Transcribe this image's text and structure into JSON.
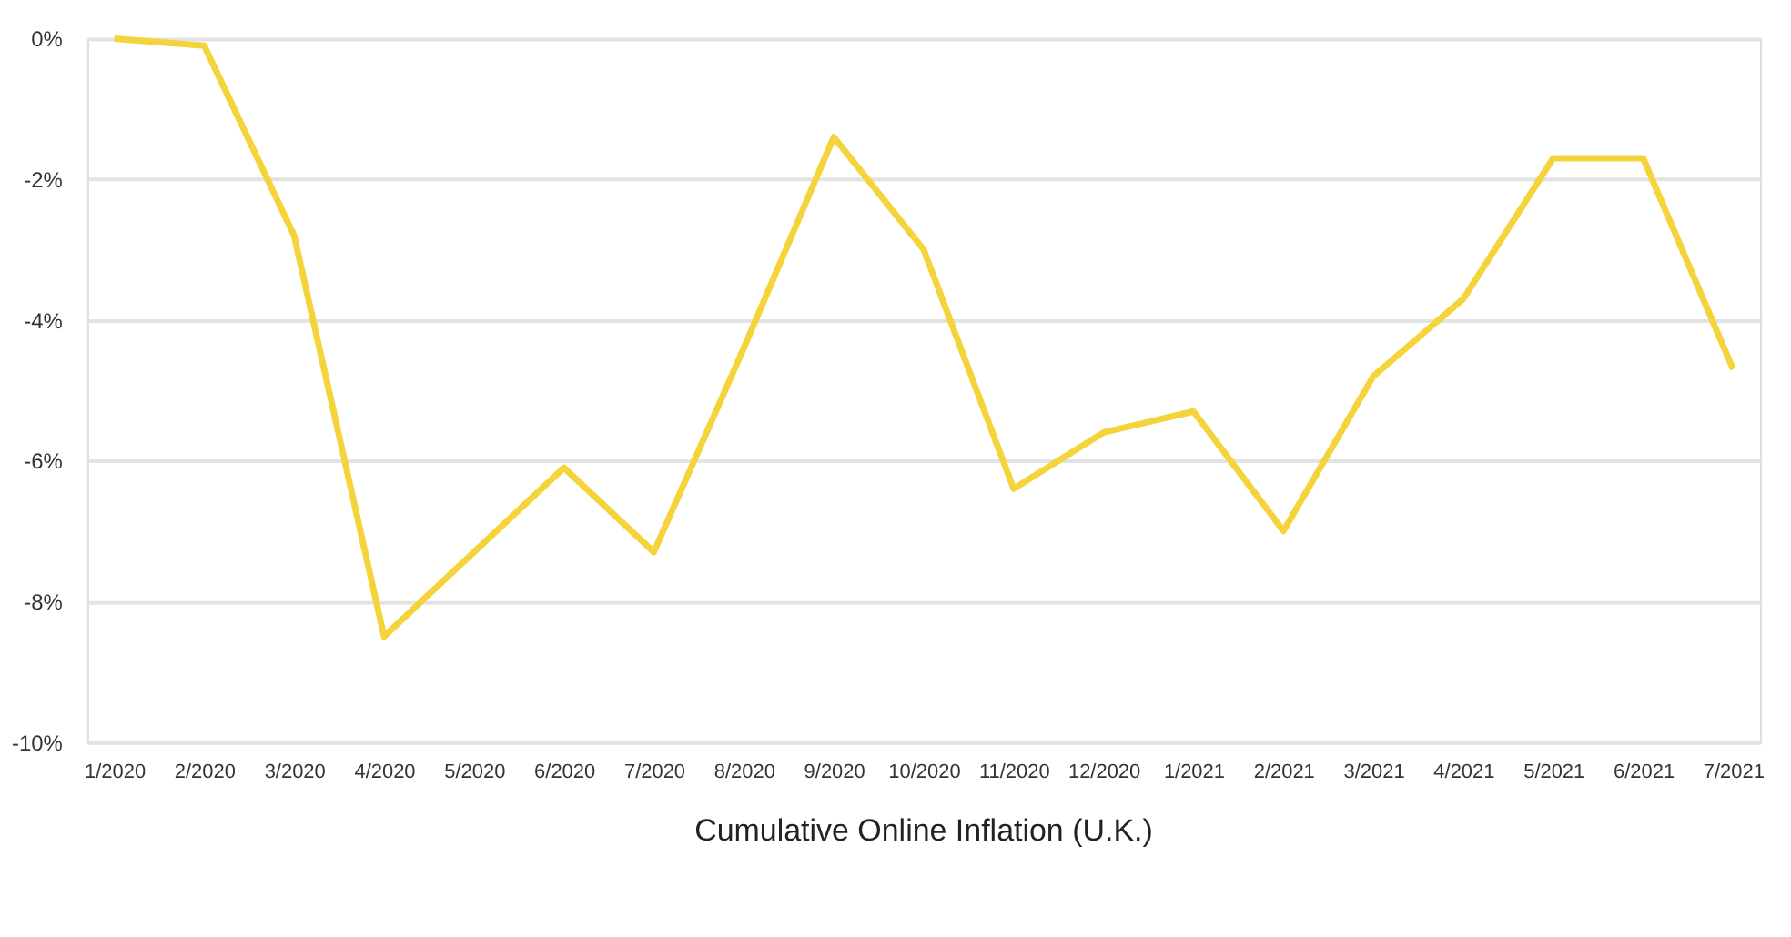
{
  "chart_data": {
    "type": "line",
    "title": "Cumulative Online Inflation (U.K.)",
    "categories": [
      "1/2020",
      "2/2020",
      "3/2020",
      "4/2020",
      "5/2020",
      "6/2020",
      "7/2020",
      "8/2020",
      "9/2020",
      "10/2020",
      "11/2020",
      "12/2020",
      "1/2021",
      "2/2021",
      "3/2021",
      "4/2021",
      "5/2021",
      "6/2021",
      "7/2021"
    ],
    "series": [
      {
        "color": "#f5d33a",
        "values": [
          0,
          -0.1,
          -2.8,
          -8.5,
          -7.3,
          -6.1,
          -7.3,
          -4.4,
          -1.4,
          -3.0,
          -6.4,
          -5.6,
          -5.3,
          -7.0,
          -4.8,
          -3.7,
          -1.7,
          -1.7,
          -4.7
        ]
      }
    ],
    "ylim": [
      -10,
      0
    ],
    "yticks": [
      {
        "value": -10,
        "label": "-10%"
      },
      {
        "value": -8,
        "label": "-8%"
      },
      {
        "value": -6,
        "label": "-6%"
      },
      {
        "value": -4,
        "label": "-4%"
      },
      {
        "value": -2,
        "label": "-2%"
      },
      {
        "value": 0,
        "label": "0%"
      }
    ],
    "grid": "y",
    "marker": "none",
    "line_style": "solid"
  }
}
